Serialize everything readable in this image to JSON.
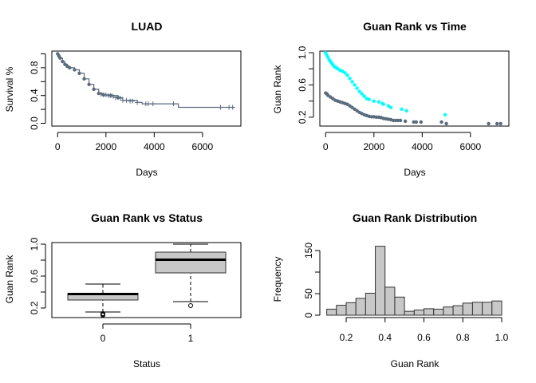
{
  "colors": {
    "gray_series": "#5a6b7d",
    "cyan_series": "#00ffff",
    "box_fill": "#c8c8c8",
    "hist_fill": "#c8c8c8"
  },
  "chart_data": [
    {
      "id": "km",
      "type": "line",
      "title": "LUAD",
      "xlabel": "Days",
      "ylabel": "Survival %",
      "xlim": [
        -240,
        7590
      ],
      "ylim": [
        -0.04,
        1.04
      ],
      "xticks": [
        0,
        2000,
        4000,
        6000
      ],
      "yticks": [
        0.0,
        0.4,
        0.8
      ],
      "ytick_labels": [
        "0.0",
        "0.4",
        "0.8"
      ],
      "yticks_minor": [
        0.2,
        0.6,
        1.0
      ],
      "step_curve": [
        [
          0,
          1.0
        ],
        [
          50,
          0.97
        ],
        [
          100,
          0.94
        ],
        [
          200,
          0.89
        ],
        [
          300,
          0.85
        ],
        [
          400,
          0.82
        ],
        [
          500,
          0.8
        ],
        [
          700,
          0.77
        ],
        [
          900,
          0.72
        ],
        [
          1100,
          0.64
        ],
        [
          1300,
          0.56
        ],
        [
          1500,
          0.49
        ],
        [
          1700,
          0.43
        ],
        [
          1900,
          0.41
        ],
        [
          2200,
          0.4
        ],
        [
          2500,
          0.37
        ],
        [
          2700,
          0.33
        ],
        [
          3300,
          0.3
        ],
        [
          3500,
          0.28
        ],
        [
          5000,
          0.23
        ],
        [
          7300,
          0.23
        ]
      ],
      "censor_marks": [
        [
          1800,
          0.42
        ],
        [
          1900,
          0.41
        ],
        [
          2000,
          0.41
        ],
        [
          2100,
          0.4
        ],
        [
          2200,
          0.4
        ],
        [
          2300,
          0.39
        ],
        [
          2400,
          0.37
        ],
        [
          2500,
          0.37
        ],
        [
          2600,
          0.36
        ],
        [
          2700,
          0.33
        ],
        [
          2850,
          0.33
        ],
        [
          3000,
          0.32
        ],
        [
          3100,
          0.32
        ],
        [
          3300,
          0.3
        ],
        [
          3650,
          0.28
        ],
        [
          3750,
          0.28
        ],
        [
          3950,
          0.28
        ],
        [
          4800,
          0.28
        ],
        [
          6750,
          0.23
        ],
        [
          7100,
          0.23
        ],
        [
          7250,
          0.23
        ]
      ]
    },
    {
      "id": "scatter",
      "type": "scatter",
      "title": "Guan Rank vs Time",
      "xlabel": "Days",
      "ylabel": "Guan Rank",
      "xlim": [
        -240,
        7590
      ],
      "ylim": [
        0.09,
        1.02
      ],
      "xticks": [
        0,
        2000,
        4000,
        6000
      ],
      "yticks": [
        0.2,
        0.6,
        1.0
      ],
      "ytick_labels": [
        "0.2",
        "0.6",
        "1.0"
      ],
      "yticks_minor": [
        0.4,
        0.8
      ],
      "series": [
        {
          "color": "#00ffff",
          "points": [
            [
              0,
              1.0
            ],
            [
              50,
              0.97
            ],
            [
              100,
              0.94
            ],
            [
              150,
              0.91
            ],
            [
              200,
              0.89
            ],
            [
              250,
              0.87
            ],
            [
              300,
              0.85
            ],
            [
              350,
              0.83
            ],
            [
              400,
              0.82
            ],
            [
              450,
              0.81
            ],
            [
              500,
              0.8
            ],
            [
              600,
              0.78
            ],
            [
              700,
              0.77
            ],
            [
              800,
              0.75
            ],
            [
              900,
              0.72
            ],
            [
              1000,
              0.68
            ],
            [
              1100,
              0.64
            ],
            [
              1200,
              0.6
            ],
            [
              1300,
              0.56
            ],
            [
              1400,
              0.52
            ],
            [
              1500,
              0.49
            ],
            [
              1600,
              0.46
            ],
            [
              1700,
              0.43
            ],
            [
              1800,
              0.42
            ],
            [
              2000,
              0.4
            ],
            [
              2200,
              0.39
            ],
            [
              2350,
              0.37
            ],
            [
              2400,
              0.36
            ],
            [
              2600,
              0.34
            ],
            [
              2700,
              0.32
            ],
            [
              3150,
              0.3
            ],
            [
              3350,
              0.28
            ],
            [
              4950,
              0.23
            ]
          ]
        },
        {
          "color": "#5a6b7d",
          "points": [
            [
              0,
              0.5
            ],
            [
              50,
              0.49
            ],
            [
              100,
              0.47
            ],
            [
              200,
              0.45
            ],
            [
              300,
              0.43
            ],
            [
              400,
              0.41
            ],
            [
              500,
              0.4
            ],
            [
              600,
              0.39
            ],
            [
              700,
              0.38
            ],
            [
              800,
              0.37
            ],
            [
              900,
              0.36
            ],
            [
              1000,
              0.34
            ],
            [
              1100,
              0.32
            ],
            [
              1200,
              0.3
            ],
            [
              1300,
              0.28
            ],
            [
              1400,
              0.26
            ],
            [
              1500,
              0.245
            ],
            [
              1600,
              0.23
            ],
            [
              1700,
              0.22
            ],
            [
              1800,
              0.21
            ],
            [
              1900,
              0.205
            ],
            [
              2000,
              0.205
            ],
            [
              2100,
              0.2
            ],
            [
              2200,
              0.2
            ],
            [
              2300,
              0.195
            ],
            [
              2400,
              0.185
            ],
            [
              2500,
              0.18
            ],
            [
              2600,
              0.175
            ],
            [
              2700,
              0.17
            ],
            [
              2800,
              0.16
            ],
            [
              2900,
              0.16
            ],
            [
              3000,
              0.16
            ],
            [
              3100,
              0.16
            ],
            [
              3300,
              0.15
            ],
            [
              3650,
              0.14
            ],
            [
              3750,
              0.14
            ],
            [
              3950,
              0.14
            ],
            [
              4800,
              0.14
            ],
            [
              5000,
              0.12
            ],
            [
              6750,
              0.12
            ],
            [
              7100,
              0.12
            ],
            [
              7250,
              0.12
            ]
          ]
        }
      ]
    },
    {
      "id": "box",
      "type": "box",
      "title": "Guan Rank vs Status",
      "xlabel": "Status",
      "ylabel": "Guan Rank",
      "ylim": [
        0.08,
        1.02
      ],
      "yticks": [
        0.2,
        0.6,
        1.0
      ],
      "ytick_labels": [
        "0.2",
        "0.6",
        "1.0"
      ],
      "yticks_minor": [
        0.4,
        0.8
      ],
      "categories": [
        "0",
        "1"
      ],
      "boxes": [
        {
          "whisker_low": 0.15,
          "q1": 0.3,
          "median": 0.375,
          "q3": 0.385,
          "whisker_high": 0.5,
          "outliers": [
            0.11,
            0.12,
            0.13
          ]
        },
        {
          "whisker_low": 0.28,
          "q1": 0.64,
          "median": 0.805,
          "q3": 0.9,
          "whisker_high": 1.0,
          "outliers": [
            0.23
          ]
        }
      ]
    },
    {
      "id": "hist",
      "type": "bar",
      "title": "Guan Rank Distribution",
      "xlabel": "Guan Rank",
      "ylabel": "Frequency",
      "xlim": [
        0.1,
        1.0
      ],
      "ylim": [
        0,
        160
      ],
      "xticks": [
        0.2,
        0.4,
        0.6,
        0.8,
        1.0
      ],
      "xtick_labels": [
        "0.2",
        "0.4",
        "0.6",
        "0.8",
        "1.0"
      ],
      "yticks": [
        0,
        50,
        150
      ],
      "ytick_labels": [
        "0",
        "50",
        "150"
      ],
      "yticks_minor": [
        100
      ],
      "bin_edges": [
        0.1,
        0.15,
        0.2,
        0.25,
        0.3,
        0.35,
        0.4,
        0.45,
        0.5,
        0.55,
        0.6,
        0.65,
        0.7,
        0.75,
        0.8,
        0.85,
        0.9,
        0.95,
        1.0
      ],
      "values": [
        14,
        23,
        29,
        39,
        51,
        160,
        65,
        42,
        9,
        12,
        15,
        14,
        19,
        22,
        28,
        30,
        30,
        33
      ]
    }
  ]
}
